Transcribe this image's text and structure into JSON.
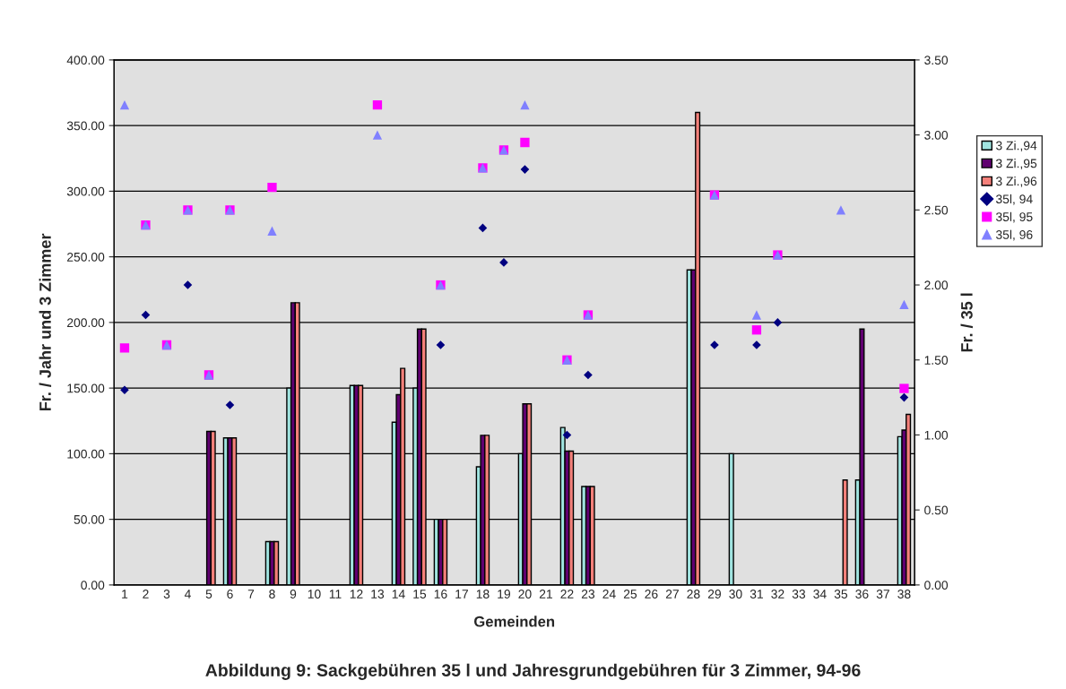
{
  "chart_data": {
    "type": "bar",
    "xlabel": "Gemeinden",
    "ylabel": "Fr. / Jahr und 3 Zimmer",
    "y2label": "Fr. / 35 l",
    "categories": [
      "1",
      "2",
      "3",
      "4",
      "5",
      "6",
      "7",
      "8",
      "9",
      "10",
      "11",
      "12",
      "13",
      "14",
      "15",
      "16",
      "17",
      "18",
      "19",
      "20",
      "21",
      "22",
      "23",
      "24",
      "25",
      "26",
      "27",
      "28",
      "29",
      "30",
      "31",
      "32",
      "33",
      "34",
      "35",
      "36",
      "37",
      "38"
    ],
    "series": [
      {
        "name": "3 Zi.,94",
        "color": "#a0e4e0",
        "values": [
          null,
          null,
          null,
          null,
          null,
          112,
          null,
          33,
          150,
          null,
          null,
          152,
          null,
          124,
          150,
          50,
          null,
          90,
          null,
          100,
          null,
          120,
          75,
          null,
          null,
          null,
          null,
          240,
          null,
          100,
          null,
          null,
          null,
          null,
          null,
          80,
          null,
          113
        ]
      },
      {
        "name": "3 Zi.,95",
        "color": "#600070",
        "values": [
          null,
          null,
          null,
          null,
          117,
          112,
          null,
          33,
          215,
          null,
          null,
          152,
          null,
          145,
          195,
          50,
          null,
          114,
          null,
          138,
          null,
          102,
          75,
          null,
          null,
          null,
          null,
          240,
          null,
          null,
          null,
          null,
          null,
          null,
          null,
          195,
          null,
          118
        ]
      },
      {
        "name": "3 Zi.,96",
        "color": "#f4807a",
        "values": [
          null,
          null,
          null,
          null,
          117,
          112,
          null,
          33,
          215,
          null,
          null,
          152,
          null,
          165,
          195,
          50,
          null,
          114,
          null,
          138,
          null,
          102,
          75,
          null,
          null,
          null,
          null,
          360,
          null,
          null,
          null,
          null,
          null,
          null,
          80,
          null,
          null,
          130
        ]
      },
      {
        "name": "35l, 94",
        "type": "scatter",
        "axis": "y2",
        "marker": "diamond",
        "color": "#000080",
        "values": [
          1.3,
          1.8,
          null,
          2.0,
          null,
          1.2,
          null,
          null,
          null,
          null,
          null,
          null,
          null,
          null,
          null,
          1.6,
          null,
          2.38,
          2.15,
          2.77,
          null,
          1.0,
          1.4,
          null,
          null,
          null,
          null,
          null,
          1.6,
          null,
          1.6,
          1.75,
          null,
          null,
          null,
          null,
          null,
          1.25
        ]
      },
      {
        "name": "35l, 95",
        "type": "scatter",
        "axis": "y2",
        "marker": "square",
        "color": "#ff00ff",
        "values": [
          1.58,
          2.4,
          1.6,
          2.5,
          1.4,
          2.5,
          null,
          2.65,
          null,
          null,
          null,
          null,
          3.2,
          null,
          null,
          2.0,
          null,
          2.78,
          2.9,
          2.95,
          null,
          1.5,
          1.8,
          null,
          null,
          null,
          null,
          null,
          2.6,
          null,
          1.7,
          2.2,
          null,
          null,
          null,
          null,
          null,
          1.31
        ]
      },
      {
        "name": "35l, 96",
        "type": "scatter",
        "axis": "y2",
        "marker": "triangle",
        "color": "#8080ff",
        "values": [
          3.2,
          2.4,
          1.6,
          2.5,
          1.4,
          2.5,
          null,
          2.36,
          null,
          null,
          null,
          null,
          3.0,
          null,
          null,
          2.0,
          null,
          2.78,
          2.9,
          3.2,
          null,
          1.5,
          1.8,
          null,
          null,
          null,
          null,
          null,
          2.6,
          null,
          1.8,
          2.2,
          null,
          null,
          2.5,
          null,
          null,
          1.87
        ]
      }
    ],
    "ylim": [
      0,
      400
    ],
    "yticks": [
      {
        "value": 0,
        "label": "0.00"
      },
      {
        "value": 50,
        "label": "50.00"
      },
      {
        "value": 100,
        "label": "100.00"
      },
      {
        "value": 150,
        "label": "150.00"
      },
      {
        "value": 200,
        "label": "200.00"
      },
      {
        "value": 250,
        "label": "250.00"
      },
      {
        "value": 300,
        "label": "300.00"
      },
      {
        "value": 350,
        "label": "350.00"
      },
      {
        "value": 400,
        "label": "400.00"
      }
    ],
    "y2lim": [
      0,
      3.5
    ],
    "y2ticks": [
      {
        "value": 0,
        "label": "0.00"
      },
      {
        "value": 0.5,
        "label": "0.50"
      },
      {
        "value": 1,
        "label": "1.00"
      },
      {
        "value": 1.5,
        "label": "1.50"
      },
      {
        "value": 2,
        "label": "2.00"
      },
      {
        "value": 2.5,
        "label": "2.50"
      },
      {
        "value": 3,
        "label": "3.00"
      },
      {
        "value": 3.5,
        "label": "3.50"
      }
    ],
    "grid": true,
    "legend": "right",
    "annotations": [
      "Abbildung 9: Sackgebühren 35 l und Jahresgrundgebühren für 3 Zimmer, 94-96"
    ]
  }
}
